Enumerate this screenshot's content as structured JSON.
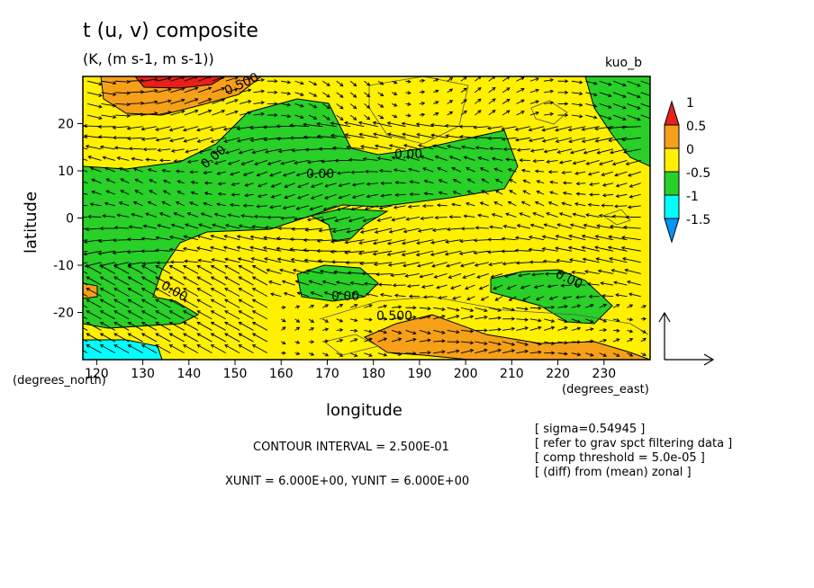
{
  "chart_data": {
    "type": "heatmap",
    "title": "t (u, v) composite",
    "subtitle": "(K, (m s-1, m s-1))",
    "plot_name": "kuo_b",
    "xlabel": "longitude",
    "ylabel": "latitude",
    "x_unit_note": "(degrees_east)",
    "y_unit_note": "(degrees_north)",
    "xlim": [
      117,
      240
    ],
    "ylim": [
      -30,
      30
    ],
    "x_ticks": [
      120,
      130,
      140,
      150,
      160,
      170,
      180,
      190,
      200,
      210,
      220,
      230
    ],
    "y_ticks": [
      -20,
      -10,
      0,
      10,
      20
    ],
    "colorbar": {
      "labels": [
        "1",
        "0.5",
        "0",
        "-0.5",
        "-1",
        "-1.5"
      ],
      "levels": [
        1,
        0.5,
        0,
        -0.5,
        -1,
        -1.5
      ],
      "colors": [
        "#e8201a",
        "#f5a018",
        "#fff000",
        "#28d028",
        "#00ffff",
        "#0096ff"
      ]
    },
    "contour_labels": [
      "0.00",
      "0.500"
    ],
    "contour_interval": "CONTOUR INTERVAL = 2.500E-01",
    "vector_units": "XUNIT = 6.000E+00, YUNIT = 6.000E+00",
    "notes": [
      "[ sigma=0.54945 ]",
      "[ refer to grav spct filtering data ]",
      "[ comp threshold = 5.0e-05 ]",
      "[ (diff) from (mean) zonal ]"
    ]
  }
}
